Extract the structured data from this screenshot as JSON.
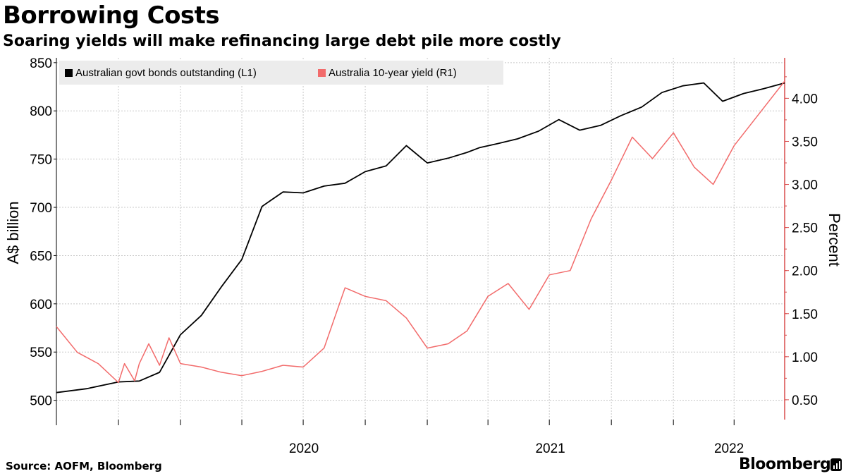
{
  "title": "Borrowing Costs",
  "subtitle": "Soaring yields will make refinancing large debt pile more costly",
  "source": "Source: AOFM, Bloomberg",
  "brand": "Bloomberg",
  "colors": {
    "left_series": "#000000",
    "right_series": "#f26b6b",
    "legend_bg": "#ececec",
    "grid": "#c8c8c8",
    "axis": "#d94b4b"
  },
  "chart_data": {
    "type": "line",
    "x_axis": {
      "ticks": [
        "2020",
        "2021",
        "2022"
      ],
      "range": [
        "2019-07-01",
        "2022-06-15"
      ]
    },
    "y_left": {
      "label": "A$ billion",
      "range": [
        480,
        855
      ],
      "ticks": [
        500,
        550,
        600,
        650,
        700,
        750,
        800,
        850
      ]
    },
    "y_right": {
      "label": "Percent",
      "range": [
        0.27,
        4.47
      ],
      "ticks": [
        "0.50",
        "1.00",
        "1.50",
        "2.00",
        "2.50",
        "3.00",
        "3.50",
        "4.00"
      ]
    },
    "grid": true,
    "legend_position": "top-left",
    "series": [
      {
        "name": "Australian govt bonds outstanding (L1)",
        "axis": "left",
        "color": "#000000",
        "x": [
          "2019-07-01",
          "2019-08-15",
          "2019-10-01",
          "2019-11-01",
          "2019-12-01",
          "2020-01-01",
          "2020-02-01",
          "2020-03-01",
          "2020-04-01",
          "2020-05-01",
          "2020-06-01",
          "2020-07-01",
          "2020-08-01",
          "2020-09-01",
          "2020-10-01",
          "2020-11-01",
          "2020-12-01",
          "2021-01-01",
          "2021-02-01",
          "2021-03-01",
          "2021-03-20",
          "2021-04-15",
          "2021-05-15",
          "2021-06-15",
          "2021-07-15",
          "2021-08-15",
          "2021-09-15",
          "2021-10-15",
          "2021-11-15",
          "2021-12-15",
          "2022-01-15",
          "2022-02-15",
          "2022-03-15",
          "2022-04-15",
          "2022-05-15",
          "2022-06-15"
        ],
        "values": [
          508,
          512,
          519,
          520,
          529,
          568,
          588,
          617,
          646,
          701,
          716,
          715,
          722,
          725,
          737,
          743,
          764,
          746,
          751,
          757,
          762,
          766,
          771,
          779,
          791,
          780,
          785,
          795,
          804,
          819,
          826,
          829,
          810,
          818,
          823,
          829
        ]
      },
      {
        "name": "Australia 10-year yield (R1)",
        "axis": "right",
        "color": "#f26b6b",
        "x": [
          "2019-07-01",
          "2019-08-01",
          "2019-09-01",
          "2019-10-01",
          "2019-10-10",
          "2019-10-25",
          "2019-11-01",
          "2019-11-15",
          "2019-12-01",
          "2019-12-15",
          "2020-01-01",
          "2020-02-01",
          "2020-03-01",
          "2020-04-01",
          "2020-05-01",
          "2020-06-01",
          "2020-07-01",
          "2020-08-01",
          "2020-09-01",
          "2020-10-01",
          "2020-11-01",
          "2020-12-01",
          "2021-01-01",
          "2021-02-01",
          "2021-03-01",
          "2021-04-01",
          "2021-05-01",
          "2021-06-01",
          "2021-07-01",
          "2021-08-01",
          "2021-09-01",
          "2021-10-01",
          "2021-11-01",
          "2021-12-01",
          "2022-01-01",
          "2022-02-01",
          "2022-03-01",
          "2022-04-01",
          "2022-05-01",
          "2022-06-15"
        ],
        "values": [
          1.35,
          1.05,
          0.92,
          0.7,
          0.92,
          0.72,
          0.92,
          1.15,
          0.9,
          1.22,
          0.92,
          0.88,
          0.82,
          0.78,
          0.83,
          0.9,
          0.88,
          1.1,
          1.8,
          1.7,
          1.65,
          1.45,
          1.1,
          1.15,
          1.3,
          1.7,
          1.85,
          1.55,
          1.95,
          2.0,
          2.6,
          3.05,
          3.55,
          3.3,
          3.6,
          3.2,
          3.0,
          3.45,
          3.75,
          4.2
        ]
      }
    ]
  }
}
